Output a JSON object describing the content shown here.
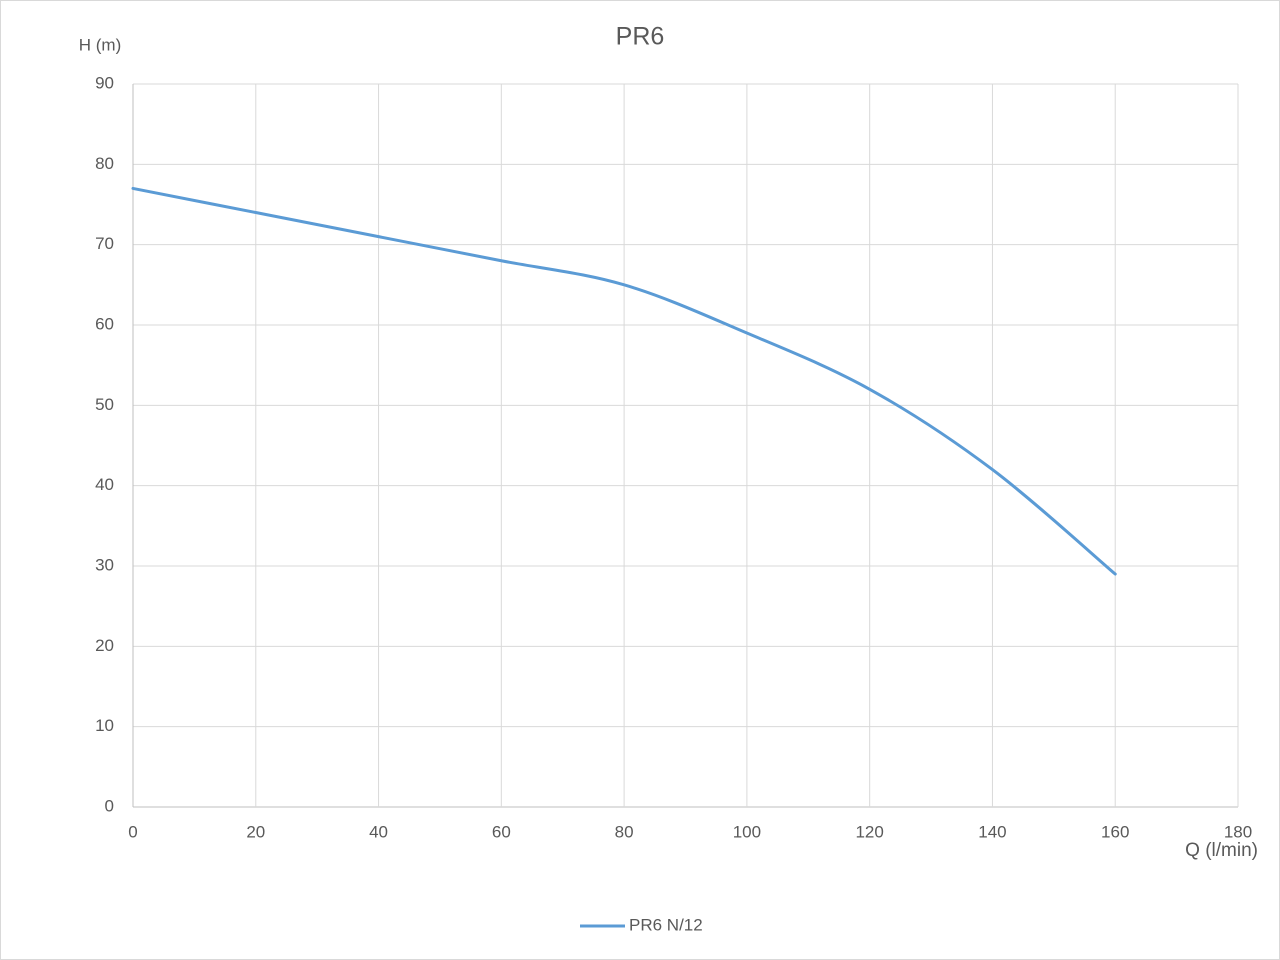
{
  "chart_data": {
    "type": "line",
    "title": "PR6",
    "x_label": "Q (l/min)",
    "y_label": "H (m)",
    "x": [
      0,
      20,
      40,
      60,
      80,
      100,
      120,
      140,
      160
    ],
    "series": [
      {
        "name": "PR6 N/12",
        "color": "#5b9bd5",
        "values": [
          77,
          74,
          71,
          68,
          65,
          59,
          52,
          42,
          29
        ]
      }
    ],
    "xlim": [
      0,
      180
    ],
    "xticks": [
      0,
      20,
      40,
      60,
      80,
      100,
      120,
      140,
      160,
      180
    ],
    "ylim": [
      0,
      90
    ],
    "yticks": [
      0,
      10,
      20,
      30,
      40,
      50,
      60,
      70,
      80,
      90
    ],
    "grid": true,
    "smooth": true,
    "legend": "bottom"
  }
}
